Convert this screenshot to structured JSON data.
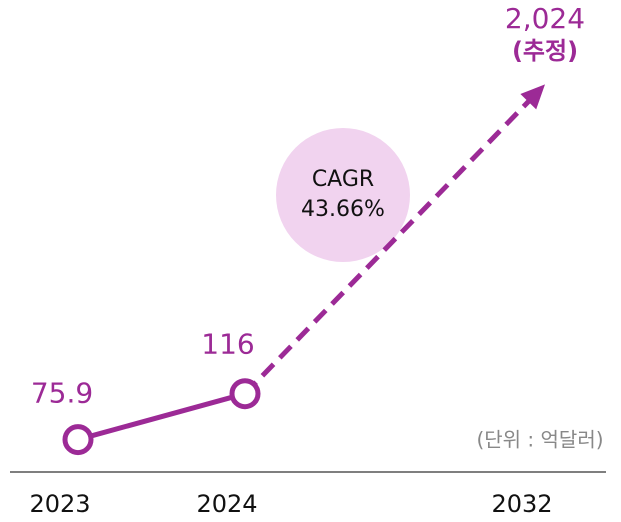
{
  "chart_data": {
    "type": "line",
    "categories": [
      "2023",
      "2024",
      "2032"
    ],
    "series": [
      {
        "color": "#9c2a96",
        "values": [
          75.9,
          116,
          2024
        ],
        "value_labels": [
          "75.9",
          "116",
          "2,024"
        ]
      }
    ],
    "estimate_label": "(추정)",
    "annotation": {
      "title": "CAGR",
      "value": "43.66%",
      "color": "#f1d3ef"
    },
    "unit_note": "(단위 : 억달러)",
    "log": true,
    "ylim": [
      60,
      2400
    ]
  }
}
